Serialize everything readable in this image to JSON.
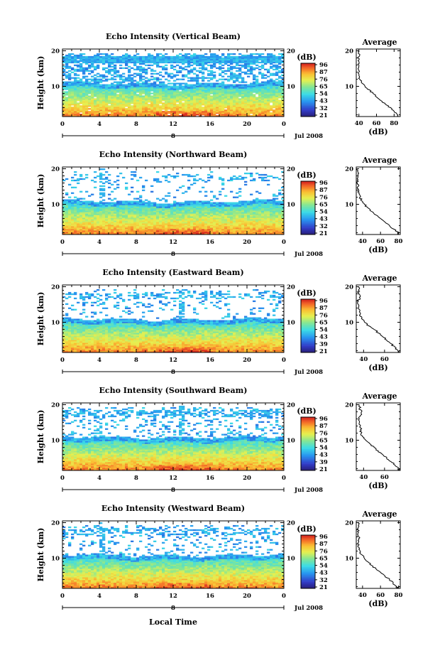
{
  "page": {
    "xlabel": "Local Time",
    "date_label": "Jul 2008",
    "day_marker": "8"
  },
  "chart_data": [
    {
      "type": "heatmap",
      "title": "Echo Intensity (Vertical Beam)",
      "ylabel": "Height (km)",
      "x_ticks": [
        "0",
        "4",
        "8",
        "12",
        "16",
        "20",
        "0"
      ],
      "xlim": [
        0,
        24
      ],
      "y_ticks": [
        "20",
        "10"
      ],
      "ylim": [
        1.5,
        20.5
      ],
      "colorbar": {
        "unit": "(dB)",
        "ticks": [
          "96",
          "87",
          "76",
          "65",
          "54",
          "43",
          "32",
          "21"
        ]
      },
      "average": {
        "title": "Average",
        "xlabel": "(dB)",
        "x_ticks": [
          "40",
          "60",
          "80"
        ],
        "xlim": [
          37,
          87
        ],
        "y_ticks": [
          "20",
          "10"
        ],
        "profile": [
          [
            85,
            1.5
          ],
          [
            84,
            2
          ],
          [
            80,
            3
          ],
          [
            76,
            4
          ],
          [
            70,
            5
          ],
          [
            65,
            6
          ],
          [
            60,
            7
          ],
          [
            56,
            8
          ],
          [
            52,
            9
          ],
          [
            47,
            10
          ],
          [
            43,
            11
          ],
          [
            41,
            12
          ],
          [
            40,
            13
          ],
          [
            40,
            14
          ],
          [
            39,
            15
          ],
          [
            40,
            16
          ],
          [
            40,
            17
          ],
          [
            39,
            18
          ],
          [
            41,
            19
          ],
          [
            39,
            20
          ]
        ]
      },
      "noise_top": 0.95
    },
    {
      "type": "heatmap",
      "title": "Echo Intensity (Northward Beam)",
      "ylabel": "Height (km)",
      "x_ticks": [
        "0",
        "4",
        "8",
        "12",
        "16",
        "20",
        "0"
      ],
      "xlim": [
        0,
        24
      ],
      "y_ticks": [
        "20",
        "10"
      ],
      "ylim": [
        1.5,
        20.5
      ],
      "colorbar": {
        "unit": "(dB)",
        "ticks": [
          "96",
          "87",
          "76",
          "65",
          "54",
          "43",
          "32",
          "21"
        ]
      },
      "average": {
        "title": "Average",
        "xlabel": "(dB)",
        "x_ticks": [
          "40",
          "60",
          "80"
        ],
        "xlim": [
          33,
          82
        ],
        "y_ticks": [
          "20",
          "10"
        ],
        "profile": [
          [
            80,
            1.5
          ],
          [
            79,
            2
          ],
          [
            75,
            3
          ],
          [
            70,
            4
          ],
          [
            65,
            5
          ],
          [
            60,
            6
          ],
          [
            55,
            7
          ],
          [
            50,
            8
          ],
          [
            46,
            9
          ],
          [
            42,
            10
          ],
          [
            39,
            11
          ],
          [
            37,
            12
          ],
          [
            36,
            13
          ],
          [
            35,
            14
          ],
          [
            35,
            15
          ],
          [
            34,
            16
          ],
          [
            35,
            17
          ],
          [
            35,
            18
          ],
          [
            35,
            19
          ],
          [
            34,
            20
          ]
        ]
      },
      "noise_top": 0.2
    },
    {
      "type": "heatmap",
      "title": "Echo Intensity (Eastward Beam)",
      "ylabel": "Height (km)",
      "x_ticks": [
        "0",
        "4",
        "8",
        "12",
        "16",
        "20",
        "0"
      ],
      "xlim": [
        0,
        24
      ],
      "y_ticks": [
        "20",
        "10"
      ],
      "ylim": [
        1.5,
        20.5
      ],
      "colorbar": {
        "unit": "(dB)",
        "ticks": [
          "96",
          "87",
          "76",
          "65",
          "54",
          "43",
          "39",
          "21"
        ]
      },
      "average": {
        "title": "Average",
        "xlabel": "(dB)",
        "x_ticks": [
          "40",
          "60"
        ],
        "xlim": [
          33,
          75
        ],
        "y_ticks": [
          "20",
          "10"
        ],
        "profile": [
          [
            74,
            1.5
          ],
          [
            73,
            2
          ],
          [
            70,
            3
          ],
          [
            66,
            4
          ],
          [
            62,
            5
          ],
          [
            58,
            6
          ],
          [
            54,
            7
          ],
          [
            50,
            8
          ],
          [
            45,
            9
          ],
          [
            41,
            10
          ],
          [
            38,
            11
          ],
          [
            36,
            12
          ],
          [
            36,
            13
          ],
          [
            35,
            14
          ],
          [
            35,
            15
          ],
          [
            35,
            16
          ],
          [
            36,
            17
          ],
          [
            35,
            18
          ],
          [
            35,
            19
          ],
          [
            35,
            20
          ]
        ]
      },
      "noise_top": 0.25
    },
    {
      "type": "heatmap",
      "title": "Echo Intensity (Southward Beam)",
      "ylabel": "Height (km)",
      "x_ticks": [
        "0",
        "4",
        "8",
        "12",
        "16",
        "20",
        "0"
      ],
      "xlim": [
        0,
        24
      ],
      "y_ticks": [
        "20",
        "10"
      ],
      "ylim": [
        1.5,
        20.5
      ],
      "colorbar": {
        "unit": "(dB)",
        "ticks": [
          "96",
          "87",
          "76",
          "65",
          "54",
          "43",
          "39",
          "21"
        ]
      },
      "average": {
        "title": "Average",
        "xlabel": "(dB)",
        "x_ticks": [
          "40",
          "60"
        ],
        "xlim": [
          33,
          75
        ],
        "y_ticks": [
          "20",
          "10"
        ],
        "profile": [
          [
            74,
            1.5
          ],
          [
            73,
            2
          ],
          [
            70,
            3
          ],
          [
            66,
            4
          ],
          [
            62,
            5
          ],
          [
            58,
            6
          ],
          [
            54,
            7
          ],
          [
            50,
            8
          ],
          [
            46,
            9
          ],
          [
            42,
            10
          ],
          [
            39,
            11
          ],
          [
            38,
            12
          ],
          [
            37,
            13
          ],
          [
            37,
            14
          ],
          [
            36,
            15
          ],
          [
            36,
            16
          ],
          [
            37,
            17
          ],
          [
            38,
            18
          ],
          [
            36,
            19
          ],
          [
            36,
            20
          ]
        ]
      },
      "noise_top": 0.4
    },
    {
      "type": "heatmap",
      "title": "Echo Intensity (Westward Beam)",
      "ylabel": "Height (km)",
      "x_ticks": [
        "0",
        "4",
        "8",
        "12",
        "16",
        "20",
        "0"
      ],
      "xlim": [
        0,
        24
      ],
      "y_ticks": [
        "20",
        "10"
      ],
      "ylim": [
        1.5,
        20.5
      ],
      "colorbar": {
        "unit": "(dB)",
        "ticks": [
          "96",
          "87",
          "76",
          "65",
          "54",
          "43",
          "32",
          "21"
        ]
      },
      "average": {
        "title": "Average",
        "xlabel": "(dB)",
        "x_ticks": [
          "40",
          "60",
          "80"
        ],
        "xlim": [
          33,
          82
        ],
        "y_ticks": [
          "20",
          "10"
        ],
        "profile": [
          [
            79,
            1.5
          ],
          [
            78,
            2
          ],
          [
            74,
            3
          ],
          [
            70,
            4
          ],
          [
            65,
            5
          ],
          [
            60,
            6
          ],
          [
            55,
            7
          ],
          [
            50,
            8
          ],
          [
            46,
            9
          ],
          [
            42,
            10
          ],
          [
            39,
            11
          ],
          [
            37,
            12
          ],
          [
            36,
            13
          ],
          [
            35,
            14
          ],
          [
            35,
            15
          ],
          [
            36,
            16
          ],
          [
            35,
            17
          ],
          [
            35,
            18
          ],
          [
            36,
            19
          ],
          [
            35,
            20
          ]
        ]
      },
      "noise_top": 0.35
    }
  ]
}
